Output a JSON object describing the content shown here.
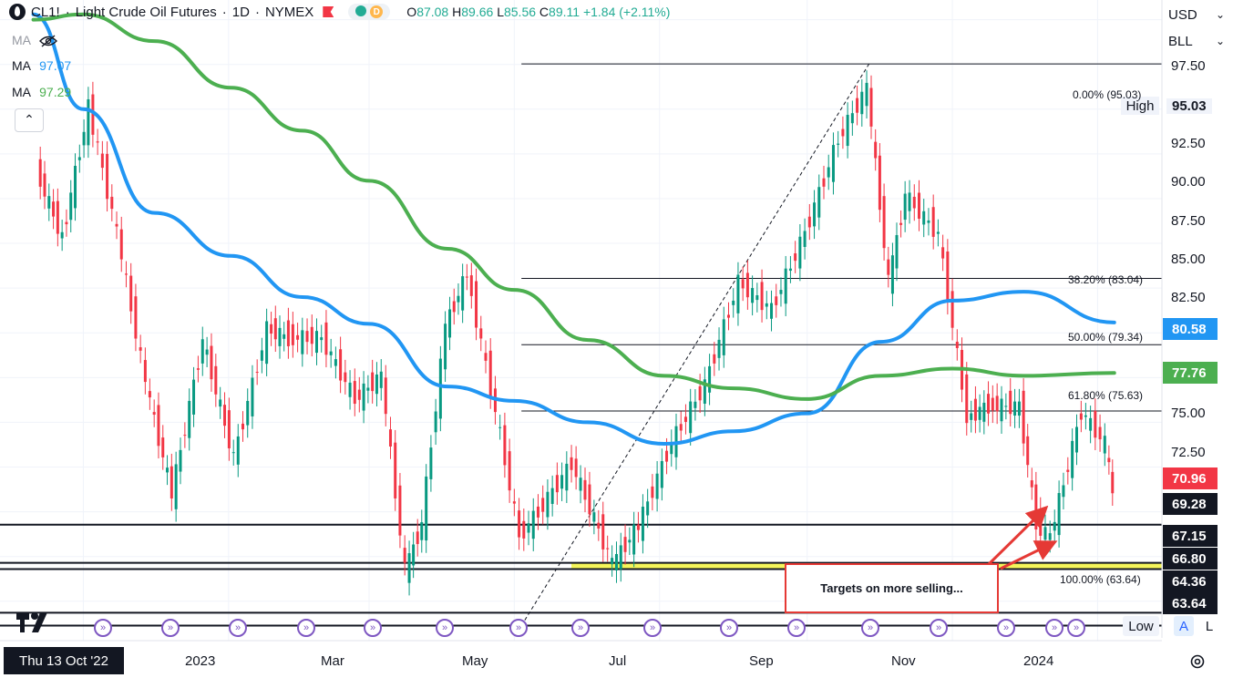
{
  "header": {
    "symbol": "CL1!",
    "separator1": "·",
    "title": "Light Crude Oil Futures",
    "separator2": "·",
    "interval": "1D",
    "separator3": "·",
    "exchange": "NYMEX",
    "delay_badge": "D",
    "ohlc": {
      "o_label": "O",
      "o": "87.08",
      "h_label": "H",
      "h": "89.66",
      "l_label": "L",
      "l": "85.56",
      "c_label": "C",
      "c": "89.11",
      "change": "+1.84 (+2.11%)"
    }
  },
  "indicators": [
    {
      "label": "MA",
      "value": "",
      "hidden": true
    },
    {
      "label": "MA",
      "value": "97.07",
      "color": "#2196f3"
    },
    {
      "label": "MA",
      "value": "97.29",
      "color": "#4caf50"
    }
  ],
  "price_axis": {
    "currency": "USD",
    "unit": "BLL",
    "ticks": [
      "97.50",
      "95.03",
      "92.50",
      "90.00",
      "87.50",
      "85.00",
      "82.50",
      "80.58",
      "77.76",
      "75.00",
      "72.50",
      "70.96",
      "69.28",
      "67.15",
      "66.80",
      "64.36",
      "63.64"
    ]
  },
  "badges": [
    {
      "value": "80.58",
      "color": "#2196f3"
    },
    {
      "value": "77.76",
      "color": "#4caf50"
    },
    {
      "value": "70.96",
      "color": "#f23645"
    },
    {
      "value": "69.28",
      "color": "#131722"
    },
    {
      "value": "67.15",
      "color": "#131722"
    },
    {
      "value": "66.80",
      "color": "#131722"
    },
    {
      "value": "64.36",
      "color": "#131722"
    },
    {
      "value": "63.64",
      "color": "#131722"
    }
  ],
  "high_label": "High",
  "fib_labels": [
    "0.00% (95.03)",
    "38.20% (83.04)",
    "50.00% (79.34)",
    "61.80% (75.63)",
    "100.00% (63.64)"
  ],
  "annotation": "Targets on more selling...",
  "time_axis": {
    "cursor_date": "Thu 13 Oct '22",
    "labels": [
      "2023",
      "Mar",
      "May",
      "Jul",
      "Sep",
      "Nov",
      "2024"
    ]
  },
  "scale_buttons": {
    "low": "Low",
    "auto": "A",
    "log": "L"
  },
  "chart_data": {
    "type": "candlestick",
    "title": "CL1! · Light Crude Oil Futures · 1D · NYMEX",
    "ylim": [
      62.8,
      98.6
    ],
    "x_labels": [
      "2023",
      "Mar",
      "May",
      "Jul",
      "Sep",
      "Nov",
      "2024"
    ],
    "series": [
      {
        "name": "Price (close path)",
        "color": "#089981",
        "points": [
          [
            "2022-10-13",
            89.1
          ],
          [
            "2022-10-24",
            85.3
          ],
          [
            "2022-11-04",
            92.6
          ],
          [
            "2022-11-16",
            85.6
          ],
          [
            "2022-11-28",
            77.2
          ],
          [
            "2022-12-09",
            71.0
          ],
          [
            "2022-12-22",
            79.6
          ],
          [
            "2023-01-04",
            73.0
          ],
          [
            "2023-01-18",
            80.2
          ],
          [
            "2023-01-27",
            79.7
          ],
          [
            "2023-02-10",
            79.7
          ],
          [
            "2023-02-24",
            76.3
          ],
          [
            "2023-03-07",
            77.6
          ],
          [
            "2023-03-17",
            66.7
          ],
          [
            "2023-03-24",
            69.3
          ],
          [
            "2023-04-03",
            80.4
          ],
          [
            "2023-04-12",
            83.3
          ],
          [
            "2023-04-26",
            74.3
          ],
          [
            "2023-05-04",
            68.6
          ],
          [
            "2023-05-12",
            70.0
          ],
          [
            "2023-05-26",
            72.7
          ],
          [
            "2023-06-12",
            67.1
          ],
          [
            "2023-06-23",
            69.2
          ],
          [
            "2023-07-07",
            73.9
          ],
          [
            "2023-07-21",
            77.1
          ],
          [
            "2023-08-04",
            82.8
          ],
          [
            "2023-08-18",
            81.3
          ],
          [
            "2023-09-01",
            85.6
          ],
          [
            "2023-09-15",
            90.8
          ],
          [
            "2023-09-27",
            93.7
          ],
          [
            "2023-10-06",
            82.8
          ],
          [
            "2023-10-13",
            87.7
          ],
          [
            "2023-10-27",
            85.5
          ],
          [
            "2023-11-08",
            75.3
          ],
          [
            "2023-11-17",
            75.9
          ],
          [
            "2023-11-30",
            75.9
          ],
          [
            "2023-12-07",
            69.3
          ],
          [
            "2023-12-13",
            68.6
          ],
          [
            "2023-12-26",
            75.6
          ],
          [
            "2024-01-05",
            73.8
          ],
          [
            "2024-01-08",
            70.96
          ]
        ]
      },
      {
        "name": "MA",
        "value": 97.07,
        "color": "#2196f3",
        "points": [
          [
            "2022-10-11",
            97.8
          ],
          [
            "2022-11-01",
            92.5
          ],
          [
            "2022-12-01",
            86.7
          ],
          [
            "2023-01-02",
            84.3
          ],
          [
            "2023-02-01",
            82.0
          ],
          [
            "2023-03-01",
            80.5
          ],
          [
            "2023-04-03",
            77.0
          ],
          [
            "2023-05-01",
            76.2
          ],
          [
            "2023-06-01",
            75.0
          ],
          [
            "2023-07-03",
            73.8
          ],
          [
            "2023-08-01",
            74.5
          ],
          [
            "2023-09-01",
            75.5
          ],
          [
            "2023-10-02",
            79.5
          ],
          [
            "2023-11-01",
            81.8
          ],
          [
            "2023-12-01",
            82.3
          ],
          [
            "2024-01-08",
            80.58
          ]
        ]
      },
      {
        "name": "MA",
        "value": 97.29,
        "color": "#4caf50",
        "points": [
          [
            "2022-10-11",
            97.5
          ],
          [
            "2022-11-01",
            97.8
          ],
          [
            "2022-12-01",
            96.3
          ],
          [
            "2023-01-02",
            93.7
          ],
          [
            "2023-02-01",
            91.3
          ],
          [
            "2023-03-01",
            88.5
          ],
          [
            "2023-04-03",
            84.7
          ],
          [
            "2023-05-01",
            82.4
          ],
          [
            "2023-06-01",
            79.6
          ],
          [
            "2023-07-03",
            77.6
          ],
          [
            "2023-08-01",
            76.9
          ],
          [
            "2023-09-01",
            76.3
          ],
          [
            "2023-10-02",
            77.6
          ],
          [
            "2023-11-01",
            78.0
          ],
          [
            "2023-12-01",
            77.6
          ],
          [
            "2024-01-08",
            77.76
          ]
        ]
      }
    ],
    "fibonacci": [
      {
        "level": "0.00%",
        "price": 95.03
      },
      {
        "level": "38.20%",
        "price": 83.04
      },
      {
        "level": "50.00%",
        "price": 79.34
      },
      {
        "level": "61.80%",
        "price": 75.63
      },
      {
        "level": "100.00%",
        "price": 63.64
      }
    ],
    "horizontal_levels": [
      69.28,
      67.15,
      66.8,
      64.36,
      63.64
    ],
    "trend_line": {
      "from": [
        "2023-05-04",
        63.64
      ],
      "to": [
        "2023-09-27",
        95.03
      ]
    }
  }
}
